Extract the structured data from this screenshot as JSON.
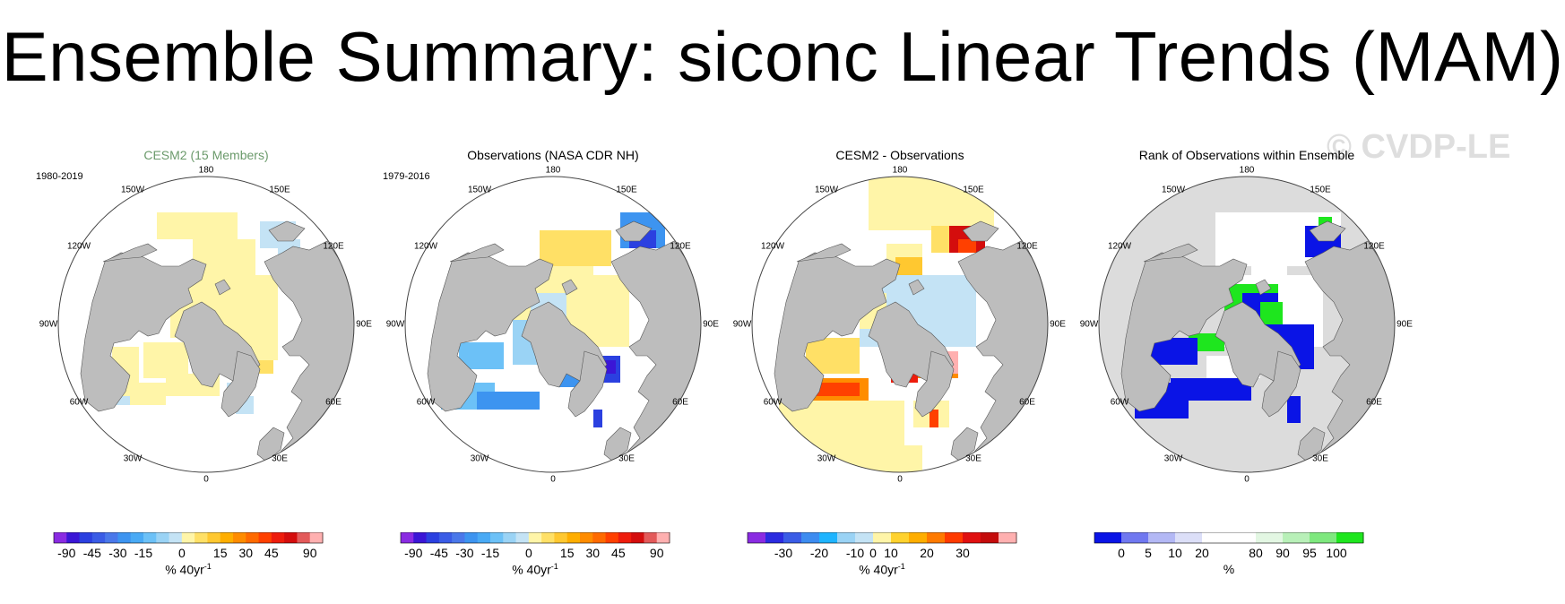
{
  "title": "Ensemble Summary: siconc Linear Trends (MAM)",
  "watermark": "© CVDP-LE",
  "lon_labels": {
    "n180": "180",
    "w150": "150W",
    "e150": "150E",
    "w120": "120W",
    "e120": "120E",
    "w90": "90W",
    "e90": "90E",
    "w60": "60W",
    "e60": "60E",
    "w30": "30W",
    "e30": "30E",
    "s0": "0"
  },
  "panels": [
    {
      "title": "CESM2 (15 Members)",
      "title_color": "#6b9a6b",
      "period": "1980-2019",
      "field": "cesm",
      "colorbar": {
        "colors": [
          "#8a2be2",
          "#3b16d6",
          "#2b40e0",
          "#3a5ce6",
          "#4a78ea",
          "#3d94f0",
          "#49aaf5",
          "#6cc1f7",
          "#9ad3f5",
          "#c4e3f5",
          "#fff5a8",
          "#ffe066",
          "#ffc830",
          "#ffae00",
          "#ff8c00",
          "#ff6a00",
          "#ff4000",
          "#ee1c0c",
          "#d40d0d",
          "#e35a5a",
          "#ffb0b0"
        ],
        "ticks": [
          "-90",
          "-45",
          "-30",
          "-15",
          "0",
          "15",
          "30",
          "45",
          "90"
        ],
        "tick_pos": [
          1,
          3,
          5,
          7,
          10,
          13,
          15,
          17,
          20
        ],
        "units": "% 40yr",
        "units_sup": "-1"
      }
    },
    {
      "title": "Observations (NASA CDR NH)",
      "title_color": "#000000",
      "period": "1979-2016",
      "field": "obs",
      "colorbar": {
        "colors": [
          "#8a2be2",
          "#3b16d6",
          "#2b40e0",
          "#3a5ce6",
          "#4a78ea",
          "#3d94f0",
          "#49aaf5",
          "#6cc1f7",
          "#9ad3f5",
          "#c4e3f5",
          "#fff5a8",
          "#ffe066",
          "#ffc830",
          "#ffae00",
          "#ff8c00",
          "#ff6a00",
          "#ff4000",
          "#ee1c0c",
          "#d40d0d",
          "#e35a5a",
          "#ffb0b0"
        ],
        "ticks": [
          "-90",
          "-45",
          "-30",
          "-15",
          "0",
          "15",
          "30",
          "45",
          "90"
        ],
        "tick_pos": [
          1,
          3,
          5,
          7,
          10,
          13,
          15,
          17,
          20
        ],
        "units": "% 40yr",
        "units_sup": "-1"
      }
    },
    {
      "title": "CESM2 - Observations",
      "title_color": "#000000",
      "period": "",
      "field": "diff",
      "colorbar": {
        "colors": [
          "#8a2be2",
          "#2b2be0",
          "#3a5ce6",
          "#3d8cf0",
          "#1eb4ff",
          "#9ad3f5",
          "#c4e3f5",
          "#fff5a8",
          "#ffd22e",
          "#ffae00",
          "#ff7a00",
          "#ff3a00",
          "#e01010",
          "#c40c0c",
          "#ffb0b0"
        ],
        "ticks": [
          "-30",
          "-20",
          "-10",
          "0",
          "10",
          "20",
          "30"
        ],
        "tick_pos": [
          2,
          4,
          6,
          7,
          8,
          10,
          12
        ],
        "units": "% 40yr",
        "units_sup": "-1"
      }
    },
    {
      "title": "Rank of Observations within Ensemble",
      "title_color": "#000000",
      "period": "",
      "field": "rank",
      "colorbar": {
        "colors": [
          "#0a14e6",
          "#7078f0",
          "#b3b8f5",
          "#dcdff8",
          "#ffffff",
          "#ffffff",
          "#e3f7e3",
          "#b8f0b8",
          "#7ee87e",
          "#1ee61e"
        ],
        "ticks": [
          "0",
          "5",
          "10",
          "20",
          "80",
          "90",
          "95",
          "100"
        ],
        "tick_pos": [
          1,
          2,
          3,
          4,
          6,
          7,
          8,
          9
        ],
        "units": "%",
        "units_sup": ""
      }
    }
  ]
}
